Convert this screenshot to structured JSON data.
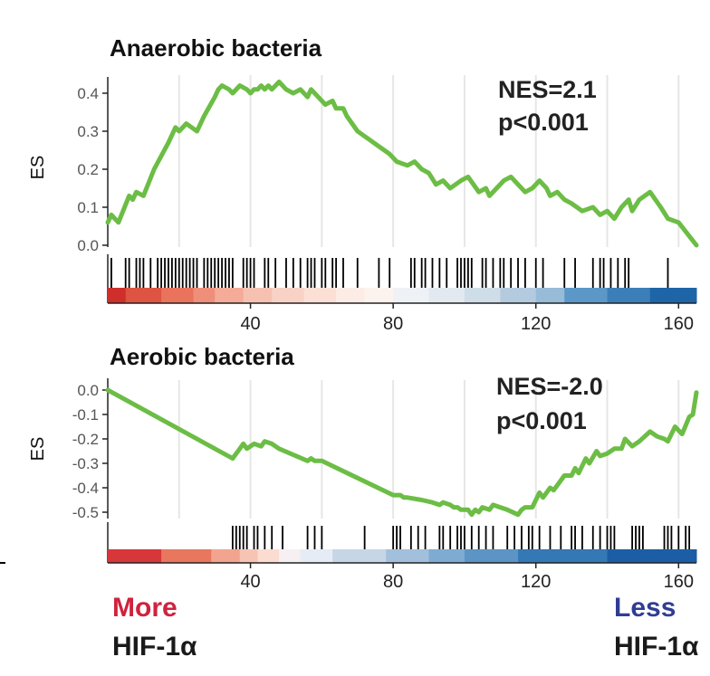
{
  "chart_data": [
    {
      "type": "line",
      "title": "Anaerobic bacteria",
      "xlabel": "",
      "ylabel": "ES",
      "xlim": [
        0,
        165
      ],
      "ylim": [
        0,
        0.45
      ],
      "xticks": [
        40,
        80,
        120,
        160
      ],
      "yticks": [
        0.0,
        0.1,
        0.2,
        0.3,
        0.4
      ],
      "ytick_labels": [
        "0.0",
        "0.1",
        "0.2",
        "0.3",
        "0.4"
      ],
      "grid": "vertical",
      "annotation": [
        "NES=2.1",
        "p<0.001"
      ],
      "line_color": "#6cbd45",
      "series": [
        {
          "x": [
            0,
            1,
            3,
            6,
            7,
            8,
            10,
            13,
            17,
            19,
            20,
            22,
            25,
            27,
            30,
            31,
            32,
            34,
            35,
            37,
            39,
            40,
            41,
            42,
            43,
            44,
            45,
            46,
            47,
            48,
            50,
            52,
            54,
            56,
            57,
            59,
            61,
            63,
            64,
            66,
            67,
            70,
            73,
            76,
            79,
            81,
            84,
            86,
            88,
            90,
            92,
            94,
            96,
            99,
            101,
            104,
            106,
            107,
            109,
            111,
            113,
            115,
            117,
            119,
            121,
            123,
            124,
            126,
            128,
            130,
            133,
            136,
            138,
            140,
            142,
            144,
            146,
            147,
            149,
            152,
            155,
            157,
            160,
            165
          ],
          "y": [
            0.06,
            0.08,
            0.06,
            0.13,
            0.12,
            0.14,
            0.13,
            0.2,
            0.27,
            0.31,
            0.3,
            0.32,
            0.3,
            0.34,
            0.39,
            0.41,
            0.42,
            0.41,
            0.4,
            0.42,
            0.41,
            0.4,
            0.41,
            0.41,
            0.42,
            0.41,
            0.42,
            0.41,
            0.42,
            0.43,
            0.41,
            0.4,
            0.41,
            0.39,
            0.41,
            0.39,
            0.37,
            0.38,
            0.36,
            0.36,
            0.34,
            0.3,
            0.28,
            0.26,
            0.24,
            0.22,
            0.21,
            0.22,
            0.2,
            0.19,
            0.16,
            0.17,
            0.15,
            0.17,
            0.18,
            0.14,
            0.15,
            0.13,
            0.15,
            0.17,
            0.18,
            0.16,
            0.14,
            0.15,
            0.17,
            0.15,
            0.13,
            0.14,
            0.12,
            0.11,
            0.09,
            0.1,
            0.08,
            0.09,
            0.07,
            0.1,
            0.12,
            0.09,
            0.12,
            0.14,
            0.1,
            0.07,
            0.06,
            0.0
          ]
        }
      ],
      "hits": [
        1,
        5,
        6,
        8,
        9,
        10,
        12,
        14,
        15,
        16,
        17,
        18,
        19,
        20,
        21,
        22,
        23,
        24,
        25,
        27,
        28,
        29,
        30,
        31,
        32,
        33,
        34,
        35,
        38,
        39,
        40,
        41,
        44,
        45,
        47,
        50,
        52,
        54,
        56,
        57,
        58,
        60,
        61,
        63,
        64,
        66,
        70,
        76,
        79,
        85,
        86,
        88,
        89,
        91,
        93,
        95,
        98,
        99,
        100,
        101,
        102,
        105,
        106,
        108,
        110,
        111,
        113,
        115,
        117,
        120,
        122,
        128,
        131,
        136,
        138,
        139,
        141,
        143,
        145,
        146,
        157
      ],
      "gradient": [
        {
          "to": 5,
          "color": "#cf2f2a"
        },
        {
          "to": 15,
          "color": "#dd5442"
        },
        {
          "to": 24,
          "color": "#e9735c"
        },
        {
          "to": 30,
          "color": "#ef8f79"
        },
        {
          "to": 38,
          "color": "#f4ab98"
        },
        {
          "to": 46,
          "color": "#f6c1b1"
        },
        {
          "to": 55,
          "color": "#f9d2c6"
        },
        {
          "to": 64,
          "color": "#fce0d6"
        },
        {
          "to": 72,
          "color": "#fdece6"
        },
        {
          "to": 80,
          "color": "#fdf3ee"
        },
        {
          "to": 90,
          "color": "#eef1f6"
        },
        {
          "to": 100,
          "color": "#e2e9f1"
        },
        {
          "to": 110,
          "color": "#cfdde9"
        },
        {
          "to": 120,
          "color": "#b4cbdf"
        },
        {
          "to": 128,
          "color": "#98bbd8"
        },
        {
          "to": 140,
          "color": "#5c98c7"
        },
        {
          "to": 152,
          "color": "#3c7fb8"
        },
        {
          "to": 165,
          "color": "#1e65a8"
        }
      ]
    },
    {
      "type": "line",
      "title": "Aerobic bacteria",
      "xlabel": "",
      "ylabel": "ES",
      "xlim": [
        0,
        165
      ],
      "ylim": [
        -0.52,
        0.02
      ],
      "xticks": [
        40,
        80,
        120,
        160
      ],
      "yticks": [
        0.0,
        -0.1,
        -0.2,
        -0.3,
        -0.4,
        -0.5
      ],
      "ytick_labels": [
        "0.0",
        "-0.1",
        "-0.2",
        "-0.3",
        "-0.4",
        "-0.5"
      ],
      "grid": "vertical",
      "annotation": [
        "NES=-2.0",
        "p<0.001"
      ],
      "line_color": "#6cbd45",
      "series": [
        {
          "x": [
            0,
            35,
            37,
            38,
            39,
            41,
            43,
            44,
            46,
            48,
            56,
            57,
            58,
            60,
            80,
            82,
            83,
            84,
            88,
            91,
            93,
            94,
            96,
            97,
            98,
            99,
            101,
            102,
            103,
            104,
            105,
            107,
            108,
            110,
            112,
            115,
            116,
            117,
            119,
            120,
            121,
            122,
            124,
            125,
            127,
            128,
            130,
            131,
            132,
            134,
            135,
            137,
            138,
            140,
            141,
            142,
            144,
            145,
            147,
            149,
            152,
            154,
            156,
            157,
            159,
            161,
            163,
            164,
            165
          ],
          "y": [
            0.0,
            -0.28,
            -0.24,
            -0.22,
            -0.24,
            -0.22,
            -0.23,
            -0.21,
            -0.22,
            -0.24,
            -0.29,
            -0.28,
            -0.29,
            -0.29,
            -0.43,
            -0.43,
            -0.44,
            -0.44,
            -0.45,
            -0.46,
            -0.47,
            -0.46,
            -0.47,
            -0.48,
            -0.48,
            -0.49,
            -0.49,
            -0.51,
            -0.49,
            -0.5,
            -0.48,
            -0.49,
            -0.47,
            -0.48,
            -0.49,
            -0.51,
            -0.49,
            -0.48,
            -0.48,
            -0.45,
            -0.42,
            -0.44,
            -0.4,
            -0.41,
            -0.37,
            -0.35,
            -0.35,
            -0.32,
            -0.34,
            -0.28,
            -0.3,
            -0.25,
            -0.27,
            -0.26,
            -0.25,
            -0.24,
            -0.24,
            -0.2,
            -0.23,
            -0.21,
            -0.17,
            -0.19,
            -0.2,
            -0.21,
            -0.15,
            -0.18,
            -0.11,
            -0.1,
            -0.01
          ]
        }
      ],
      "hits": [
        35,
        36,
        37,
        38,
        39,
        41,
        42,
        44,
        46,
        49,
        56,
        58,
        60,
        72,
        80,
        81,
        82,
        85,
        87,
        89,
        93,
        94,
        96,
        98,
        99,
        100,
        102,
        104,
        106,
        108,
        112,
        114,
        116,
        118,
        119,
        121,
        124,
        127,
        130,
        131,
        133,
        136,
        138,
        140,
        141,
        142,
        147,
        148,
        149,
        150,
        156,
        157,
        158,
        160,
        162,
        163
      ],
      "gradient": [
        {
          "to": 15,
          "color": "#d8373a"
        },
        {
          "to": 29,
          "color": "#e8775e"
        },
        {
          "to": 37,
          "color": "#f2a48f"
        },
        {
          "to": 42,
          "color": "#f7c3b3"
        },
        {
          "to": 48,
          "color": "#fbdcd1"
        },
        {
          "to": 54,
          "color": "#f7f0f2"
        },
        {
          "to": 63,
          "color": "#e6ecf5"
        },
        {
          "to": 78,
          "color": "#c6d6e6"
        },
        {
          "to": 90,
          "color": "#a2c0dc"
        },
        {
          "to": 100,
          "color": "#7eabd2"
        },
        {
          "to": 115,
          "color": "#5b94c5"
        },
        {
          "to": 140,
          "color": "#3478b5"
        },
        {
          "to": 165,
          "color": "#1b5ea5"
        }
      ]
    }
  ],
  "footer": {
    "left_top": "More",
    "left_bottom": "HIF-1α",
    "right_top": "Less",
    "right_bottom": "HIF-1α",
    "left_color": "#d0223e",
    "right_color": "#2f3d93"
  }
}
